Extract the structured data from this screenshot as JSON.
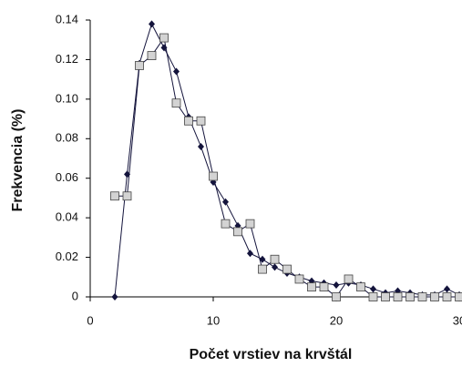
{
  "chart_data": {
    "type": "line",
    "xlabel": "Počet vrstiev na krvštál",
    "ylabel": "Frekvencia (%)",
    "x": [
      2,
      3,
      4,
      5,
      6,
      7,
      8,
      9,
      10,
      11,
      12,
      13,
      14,
      15,
      16,
      17,
      18,
      19,
      20,
      21,
      22,
      23,
      24,
      25,
      26,
      27,
      28,
      29,
      30
    ],
    "series": [
      {
        "color": "#14143c",
        "marker": "diamond",
        "values": [
          0,
          0.062,
          0.118,
          0.138,
          0.126,
          0.114,
          0.091,
          0.076,
          0.058,
          0.048,
          0.036,
          0.022,
          0.019,
          0.015,
          0.012,
          0.01,
          0.008,
          0.007,
          0.006,
          0.007,
          0.006,
          0.004,
          0.002,
          0.003,
          0.002,
          0.001,
          0.001,
          0.004,
          0.001
        ]
      },
      {
        "color": "#d3d3d3",
        "marker": "square",
        "values": [
          0.051,
          0.051,
          0.117,
          0.122,
          0.131,
          0.098,
          0.089,
          0.089,
          0.061,
          0.037,
          0.033,
          0.037,
          0.014,
          0.019,
          0.014,
          0.009,
          0.005,
          0.005,
          0,
          0.009,
          0.005,
          0,
          0,
          0,
          0,
          0,
          0,
          0,
          0
        ]
      }
    ],
    "xlim": [
      0,
      30
    ],
    "xticks": [
      0,
      10,
      20,
      30
    ],
    "ylim": [
      0,
      0.14
    ],
    "yticks": [
      0,
      0.02,
      0.04,
      0.06,
      0.08,
      {
        "value": 0.1,
        "label": "0.10"
      },
      0.12,
      0.14
    ],
    "grid": false
  }
}
